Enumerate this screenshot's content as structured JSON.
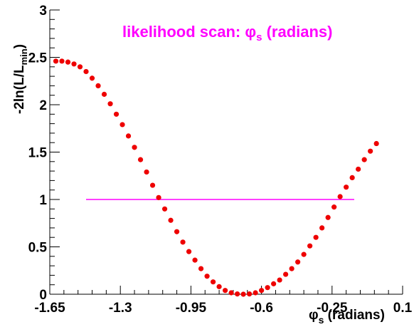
{
  "chart_data": {
    "type": "scatter",
    "title": "likelihood scan: φs (radians)",
    "title_parts": {
      "prefix": "likelihood scan: ",
      "symbol": "φ",
      "subscript": "s",
      "suffix": " (radians)"
    },
    "title_color": "#ff00ff",
    "xlabel": "φs (radians)",
    "xlabel_parts": {
      "symbol": "φ",
      "subscript": "s",
      "suffix": " (radians)"
    },
    "ylabel": "-2ln(L/Lmin)",
    "ylabel_parts": {
      "prefix": "-2ln(L/L",
      "subscript": "min",
      "suffix": ")"
    },
    "xlim": [
      -1.65,
      0.1
    ],
    "ylim": [
      0,
      3
    ],
    "x_ticks": [
      "-1.65",
      "-1.3",
      "-0.95",
      "-0.6",
      "-0.25",
      "0.1"
    ],
    "y_ticks": [
      "0",
      "0.5",
      "1",
      "1.5",
      "2",
      "2.5",
      "3"
    ],
    "grid": false,
    "series": [
      {
        "marker_color": "#ee0000",
        "x": [
          -1.62,
          -1.59,
          -1.56,
          -1.53,
          -1.5,
          -1.47,
          -1.44,
          -1.41,
          -1.38,
          -1.35,
          -1.32,
          -1.29,
          -1.26,
          -1.23,
          -1.2,
          -1.17,
          -1.14,
          -1.11,
          -1.08,
          -1.05,
          -1.02,
          -0.99,
          -0.96,
          -0.93,
          -0.9,
          -0.87,
          -0.84,
          -0.81,
          -0.78,
          -0.75,
          -0.72,
          -0.69,
          -0.66,
          -0.63,
          -0.6,
          -0.57,
          -0.54,
          -0.51,
          -0.48,
          -0.45,
          -0.42,
          -0.39,
          -0.36,
          -0.33,
          -0.3,
          -0.27,
          -0.24,
          -0.21,
          -0.18,
          -0.15,
          -0.12,
          -0.09,
          -0.06,
          -0.03
        ],
        "y": [
          2.46,
          2.46,
          2.45,
          2.43,
          2.4,
          2.35,
          2.28,
          2.2,
          2.11,
          2.01,
          1.9,
          1.79,
          1.67,
          1.55,
          1.42,
          1.29,
          1.15,
          1.02,
          0.9,
          0.78,
          0.66,
          0.55,
          0.45,
          0.36,
          0.27,
          0.19,
          0.13,
          0.08,
          0.04,
          0.015,
          0.003,
          0.0,
          0.003,
          0.015,
          0.04,
          0.07,
          0.11,
          0.15,
          0.21,
          0.27,
          0.34,
          0.42,
          0.51,
          0.6,
          0.7,
          0.81,
          0.92,
          1.03,
          1.13,
          1.23,
          1.32,
          1.42,
          1.51,
          1.59
        ]
      }
    ],
    "reference_line": {
      "y": 1,
      "x_start": -1.47,
      "x_end": -0.14,
      "color": "#ff00ff"
    }
  }
}
